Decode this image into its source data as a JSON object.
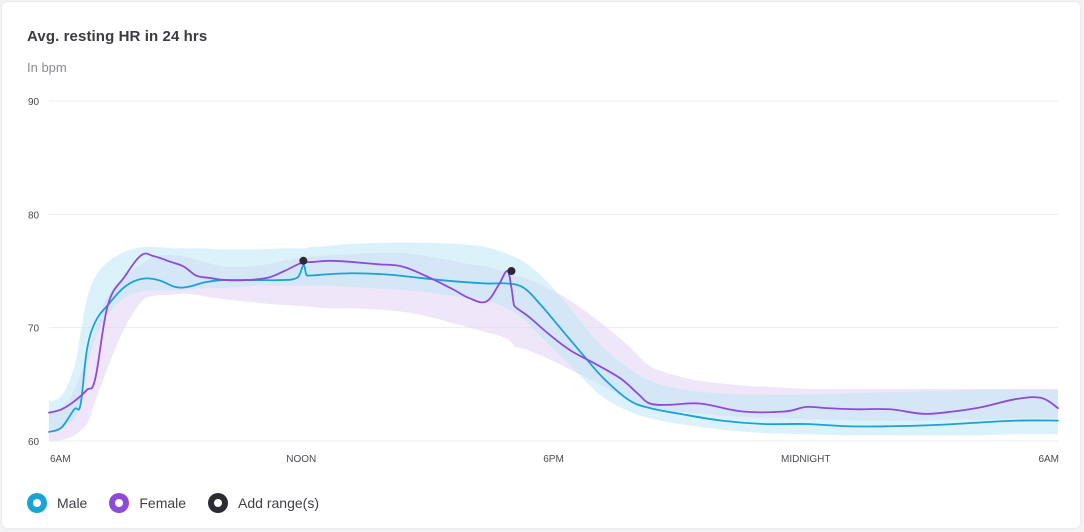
{
  "card": {
    "title": "Avg. resting HR in 24 hrs",
    "subtitle": "In bpm"
  },
  "colors": {
    "male": "#1aa3d6",
    "female": "#8f4ad8",
    "range": "#2c2a33",
    "grid": "#ececf0",
    "label": "#4a4a52"
  },
  "chart_data": {
    "type": "line",
    "title": "Avg. resting HR in 24 hrs",
    "subtitle": "In bpm",
    "ylabel": "bpm",
    "xlabel": "",
    "ylim": [
      60,
      90
    ],
    "xlim": [
      0,
      24
    ],
    "y_ticks": [
      60,
      70,
      80,
      90
    ],
    "x_ticks": [
      {
        "x": 0,
        "label": "6AM"
      },
      {
        "x": 6,
        "label": "NOON"
      },
      {
        "x": 12,
        "label": "6PM"
      },
      {
        "x": 18,
        "label": "MIDNIGHT"
      },
      {
        "x": 24,
        "label": "6AM"
      }
    ],
    "grid": true,
    "series": [
      {
        "name": "Male",
        "color": "#1aa3d6",
        "band_color": "#bfe8f5",
        "x": [
          0,
          0.3,
          0.6,
          0.75,
          0.9,
          1.1,
          1.4,
          1.8,
          2.2,
          2.6,
          3.0,
          3.3,
          3.7,
          4.1,
          4.5,
          5.0,
          5.5,
          5.9,
          6.05,
          6.12,
          6.2,
          6.6,
          7.2,
          8.0,
          8.8,
          9.6,
          10.4,
          10.9,
          11.3,
          11.7,
          12.2,
          12.7,
          13.2,
          13.8,
          14.3,
          15.0,
          16.0,
          17.0,
          18.0,
          19.0,
          20.0,
          21.0,
          22.0,
          23.0,
          24.0
        ],
        "values": [
          60.8,
          61.2,
          62.8,
          63.2,
          68.0,
          70.5,
          72.0,
          73.6,
          74.3,
          74.2,
          73.6,
          73.6,
          74.0,
          74.2,
          74.2,
          74.2,
          74.2,
          74.4,
          75.5,
          74.7,
          74.6,
          74.7,
          74.8,
          74.7,
          74.4,
          74.1,
          73.9,
          73.9,
          73.5,
          72.0,
          69.8,
          67.6,
          65.5,
          63.6,
          62.9,
          62.4,
          61.8,
          61.5,
          61.5,
          61.3,
          61.3,
          61.4,
          61.6,
          61.8,
          61.8
        ],
        "band_lower": [
          61.0,
          61.2,
          62.0,
          63.5,
          66.5,
          69.0,
          71.2,
          72.6,
          73.2,
          73.3,
          73.3,
          73.4,
          73.5,
          73.5,
          73.6,
          73.7,
          73.7,
          73.7,
          73.7,
          73.7,
          73.7,
          73.7,
          73.6,
          73.4,
          73.2,
          72.8,
          72.4,
          71.7,
          70.7,
          69.2,
          67.4,
          65.5,
          63.8,
          62.6,
          62.0,
          61.5,
          61.0,
          60.7,
          60.6,
          60.5,
          60.5,
          60.5,
          60.5,
          60.6,
          60.6
        ],
        "band_upper": [
          63.5,
          64.0,
          66.5,
          69.5,
          72.5,
          74.5,
          75.8,
          76.7,
          77.1,
          77.1,
          77.0,
          77.0,
          77.0,
          76.9,
          76.9,
          76.9,
          77.0,
          77.0,
          77.0,
          77.0,
          77.1,
          77.2,
          77.4,
          77.5,
          77.5,
          77.4,
          77.1,
          76.5,
          75.8,
          74.6,
          72.6,
          70.3,
          68.2,
          66.4,
          65.3,
          64.6,
          64.2,
          64.1,
          64.1,
          64.2,
          64.3,
          64.4,
          64.5,
          64.5,
          64.5
        ]
      },
      {
        "name": "Female",
        "color": "#8f4ad8",
        "band_color": "#e4d6f5",
        "x": [
          0,
          0.3,
          0.6,
          0.9,
          1.1,
          1.4,
          1.8,
          2.2,
          2.5,
          2.9,
          3.2,
          3.5,
          3.8,
          4.2,
          4.7,
          5.2,
          5.6,
          6.0,
          6.3,
          6.7,
          7.2,
          7.8,
          8.4,
          9.0,
          9.6,
          10.0,
          10.4,
          10.7,
          10.9,
          11.0,
          11.05,
          11.1,
          11.4,
          11.9,
          12.4,
          13.0,
          13.6,
          14.0,
          14.3,
          14.8,
          15.5,
          16.5,
          17.5,
          18.0,
          18.5,
          19.2,
          20.0,
          20.8,
          21.5,
          22.2,
          23.0,
          23.6,
          24.0
        ],
        "values": [
          62.5,
          62.8,
          63.5,
          64.5,
          65.5,
          72.0,
          74.5,
          76.4,
          76.3,
          75.8,
          75.4,
          74.6,
          74.4,
          74.2,
          74.2,
          74.4,
          75.0,
          75.7,
          75.8,
          75.9,
          75.8,
          75.6,
          75.4,
          74.5,
          73.4,
          72.6,
          72.3,
          73.8,
          75.0,
          73.5,
          72.2,
          71.8,
          71.0,
          69.4,
          68.0,
          66.8,
          65.5,
          64.2,
          63.3,
          63.2,
          63.3,
          62.6,
          62.6,
          63.0,
          62.9,
          62.8,
          62.8,
          62.4,
          62.6,
          63.0,
          63.7,
          63.8,
          62.9
        ],
        "band_lower": [
          60.0,
          60.1,
          60.5,
          61.5,
          63.5,
          66.5,
          70.0,
          72.3,
          72.8,
          72.9,
          73.0,
          72.9,
          72.7,
          72.5,
          72.3,
          72.1,
          72.0,
          71.9,
          71.8,
          71.7,
          71.7,
          71.6,
          71.4,
          71.0,
          70.4,
          70.0,
          69.6,
          69.3,
          69.0,
          68.7,
          68.5,
          68.3,
          68.0,
          67.2,
          66.3,
          65.2,
          64.0,
          63.3,
          62.9,
          62.6,
          62.4,
          62.1,
          62.0,
          61.9,
          61.9,
          61.8,
          61.8,
          61.8,
          61.9,
          61.9,
          62.0,
          62.0,
          62.0
        ],
        "band_upper": [
          62.5,
          63.0,
          64.5,
          67.5,
          70.0,
          72.8,
          74.5,
          75.6,
          76.3,
          76.4,
          76.3,
          76.0,
          75.7,
          75.4,
          75.4,
          75.6,
          75.9,
          76.2,
          76.3,
          76.4,
          76.5,
          76.6,
          76.6,
          76.3,
          75.9,
          75.6,
          75.4,
          75.1,
          74.9,
          74.8,
          74.7,
          74.6,
          74.3,
          73.4,
          72.4,
          70.8,
          69.0,
          67.6,
          66.6,
          65.9,
          65.3,
          64.9,
          64.7,
          64.6,
          64.6,
          64.6,
          64.6,
          64.6,
          64.6,
          64.6,
          64.6,
          64.6,
          64.6
        ]
      }
    ],
    "ranges": [
      {
        "label": "Add range(s)",
        "x": 6.05,
        "value": 75.9
      },
      {
        "label": "Add range(s)",
        "x": 11.0,
        "value": 75.0
      }
    ]
  },
  "legend": [
    {
      "label": "Male",
      "key": "male"
    },
    {
      "label": "Female",
      "key": "female"
    },
    {
      "label": "Add range(s)",
      "key": "range"
    }
  ]
}
